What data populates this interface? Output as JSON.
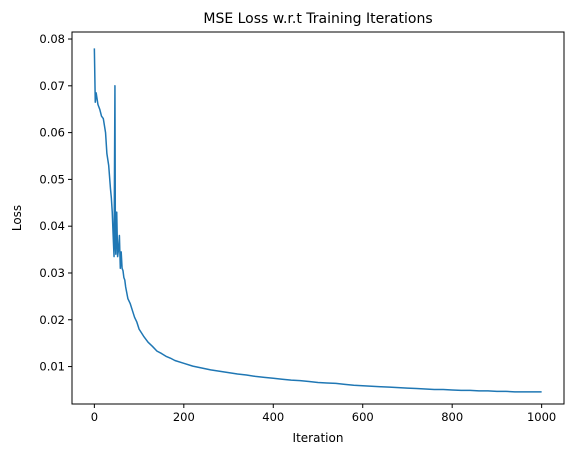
{
  "chart_data": {
    "type": "line",
    "title": "MSE Loss w.r.t Training Iterations",
    "xlabel": "Iteration",
    "ylabel": "Loss",
    "xlim": [
      -50,
      1050
    ],
    "ylim": [
      0.002,
      0.0815
    ],
    "xticks": [
      0,
      200,
      400,
      600,
      800,
      1000
    ],
    "yticks": [
      0.01,
      0.02,
      0.03,
      0.04,
      0.05,
      0.06,
      0.07,
      0.08
    ],
    "xtick_labels": [
      "0",
      "200",
      "400",
      "600",
      "800",
      "1000"
    ],
    "ytick_labels": [
      "0.01",
      "0.02",
      "0.03",
      "0.04",
      "0.05",
      "0.06",
      "0.07",
      "0.08"
    ],
    "grid": false,
    "series": [
      {
        "color": "#1f77b4",
        "x": [
          0,
          2,
          4,
          8,
          12,
          16,
          20,
          25,
          28,
          32,
          36,
          38,
          40,
          42,
          44,
          46,
          47,
          48,
          50,
          52,
          54,
          56,
          58,
          60,
          62,
          64,
          66,
          68,
          70,
          75,
          80,
          85,
          90,
          95,
          100,
          110,
          120,
          130,
          140,
          150,
          160,
          170,
          180,
          200,
          220,
          240,
          260,
          280,
          300,
          320,
          340,
          360,
          380,
          400,
          420,
          440,
          460,
          480,
          500,
          520,
          540,
          560,
          580,
          600,
          620,
          640,
          660,
          680,
          700,
          720,
          740,
          760,
          780,
          800,
          820,
          840,
          860,
          880,
          900,
          920,
          940,
          960,
          980,
          1000
        ],
        "y": [
          0.078,
          0.0665,
          0.0685,
          0.066,
          0.065,
          0.0635,
          0.063,
          0.06,
          0.0555,
          0.053,
          0.048,
          0.046,
          0.043,
          0.038,
          0.0335,
          0.07,
          0.036,
          0.034,
          0.043,
          0.0335,
          0.035,
          0.038,
          0.031,
          0.0345,
          0.031,
          0.0305,
          0.029,
          0.0285,
          0.027,
          0.0245,
          0.0235,
          0.022,
          0.0205,
          0.0195,
          0.018,
          0.0165,
          0.0152,
          0.0143,
          0.0133,
          0.0128,
          0.0122,
          0.0118,
          0.0113,
          0.0107,
          0.0101,
          0.0097,
          0.0093,
          0.009,
          0.0087,
          0.0084,
          0.0082,
          0.0079,
          0.0077,
          0.0075,
          0.0073,
          0.0071,
          0.007,
          0.0068,
          0.0066,
          0.0065,
          0.0064,
          0.0062,
          0.006,
          0.0059,
          0.0058,
          0.0057,
          0.0056,
          0.0055,
          0.0054,
          0.0053,
          0.0052,
          0.0051,
          0.0051,
          0.005,
          0.0049,
          0.0049,
          0.0048,
          0.0048,
          0.0047,
          0.0047,
          0.0046,
          0.0046,
          0.0046,
          0.0046
        ]
      }
    ]
  }
}
